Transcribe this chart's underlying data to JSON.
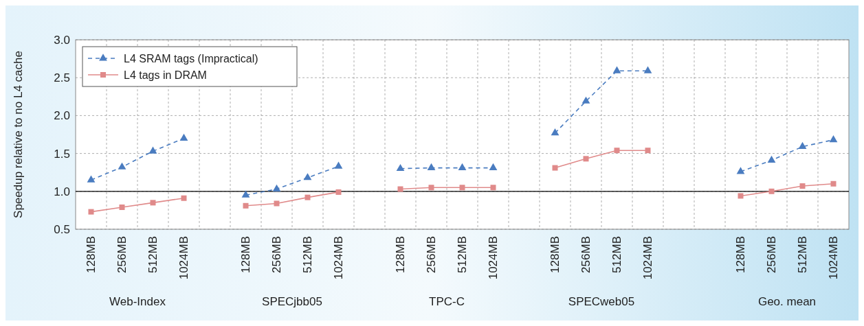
{
  "chart_data": {
    "type": "line",
    "ylabel": "Speedup relative to no L4 cache",
    "categories": [
      "128MB",
      "256MB",
      "512MB",
      "1024MB",
      null,
      "128MB",
      "256MB",
      "512MB",
      "1024MB",
      null,
      "128MB",
      "256MB",
      "512MB",
      "1024MB",
      null,
      "128MB",
      "256MB",
      "512MB",
      "1024MB",
      null,
      null,
      "128MB",
      "256MB",
      "512MB",
      "1024MB"
    ],
    "annotations": [
      "Web-Index",
      "SPECjbb05",
      "TPC-C",
      "SPECweb05",
      "Geo. mean"
    ],
    "series": [
      {
        "name": "L4 SRAM tags (Impractical)",
        "color": "#4a7cc0",
        "marker": "triangle",
        "line_style": "dashed",
        "values": [
          1.15,
          1.32,
          1.53,
          1.7,
          null,
          0.95,
          1.03,
          1.18,
          1.33,
          null,
          1.3,
          1.31,
          1.31,
          1.31,
          null,
          1.77,
          2.19,
          2.59,
          2.59,
          null,
          null,
          1.26,
          1.41,
          1.59,
          1.68
        ]
      },
      {
        "name": "L4 tags in DRAM",
        "color": "#e08a8a",
        "marker": "square",
        "line_style": "solid",
        "values": [
          0.73,
          0.79,
          0.85,
          0.91,
          null,
          0.81,
          0.84,
          0.92,
          0.99,
          null,
          1.03,
          1.05,
          1.05,
          1.05,
          null,
          1.31,
          1.43,
          1.54,
          1.54,
          null,
          null,
          0.94,
          1.0,
          1.07,
          1.1
        ]
      }
    ],
    "ylim": [
      0.5,
      3.0
    ],
    "yticks": [
      {
        "value": 0.5,
        "label": "0.5"
      },
      {
        "value": 1,
        "label": "1.0"
      },
      {
        "value": 1.5,
        "label": "1.5"
      },
      {
        "value": 2,
        "label": "2.0"
      },
      {
        "value": 2.5,
        "label": "2.5"
      },
      {
        "value": 3,
        "label": "3.0"
      }
    ],
    "ref_lines": [
      {
        "axis": "y",
        "value": 1,
        "color": "#000000",
        "line_style": "solid"
      }
    ],
    "grid": true,
    "legend": "top left"
  }
}
